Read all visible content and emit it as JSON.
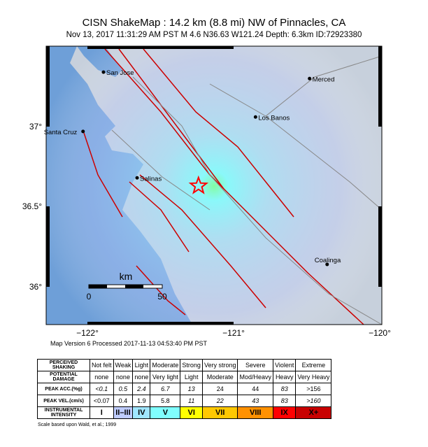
{
  "title": "CISN ShakeMap : 14.2 km (8.8 mi) NW of Pinnacles, CA",
  "subtitle": "Nov 13, 2017 11:31:29 AM PST   M 4.6   N36.63 W121.24   Depth: 6.3km   ID:72923380",
  "map": {
    "lon_labels": [
      "−122°",
      "−121°",
      "−120°"
    ],
    "lat_labels": [
      "37°",
      "36.5°",
      "36°"
    ],
    "cities": [
      {
        "name": "San Jose",
        "lon": -121.89,
        "lat": 37.34
      },
      {
        "name": "Merced",
        "lon": -120.48,
        "lat": 37.3
      },
      {
        "name": "Los Banos",
        "lon": -120.85,
        "lat": 37.06
      },
      {
        "name": "Santa Cruz",
        "lon": -122.03,
        "lat": 36.97
      },
      {
        "name": "Salinas",
        "lon": -121.66,
        "lat": 36.68
      },
      {
        "name": "Coalinga",
        "lon": -120.36,
        "lat": 36.14
      }
    ],
    "epicenter": {
      "lon": -121.24,
      "lat": 36.63
    },
    "scale": {
      "unit": "km",
      "start": "0",
      "end": "50"
    },
    "colors": {
      "ocean": "#6e9fd8",
      "land": "#c7d0dc",
      "fault": "#cc0000",
      "epicenter": "#ff0000"
    }
  },
  "version_line": "Map Version 6 Processed 2017-11-13 04:53:40 PM PST",
  "legend": {
    "rows": [
      {
        "header": "PERCEIVED SHAKING",
        "cells": [
          "Not felt",
          "Weak",
          "Light",
          "Moderate",
          "Strong",
          "Very strong",
          "Severe",
          "Violent",
          "Extreme"
        ]
      },
      {
        "header": "POTENTIAL DAMAGE",
        "cells": [
          "none",
          "none",
          "none",
          "Very light",
          "Light",
          "Moderate",
          "Mod/Heavy",
          "Heavy",
          "Very Heavy"
        ]
      },
      {
        "header": "PEAK ACC.(%g)",
        "cells": [
          "<0.1",
          "0.5",
          "2.4",
          "6.7",
          "13",
          "24",
          "44",
          "83",
          ">156"
        ]
      },
      {
        "header": "PEAK VEL.(cm/s)",
        "cells": [
          "<0.07",
          "0.4",
          "1.9",
          "5.8",
          "11",
          "22",
          "43",
          "83",
          ">160"
        ]
      },
      {
        "header": "INSTRUMENTAL INTENSITY",
        "cells": [
          "I",
          "II–III",
          "IV",
          "V",
          "VI",
          "VII",
          "VIII",
          "IX",
          "X+"
        ]
      }
    ],
    "intensity_colors": [
      "#ffffff",
      "#bfccff",
      "#a0e6ff",
      "#80ffff",
      "#ffff00",
      "#ffc800",
      "#ff9100",
      "#ff0000",
      "#c80000"
    ],
    "citation": "Scale based upon Wald, et al.; 1999"
  }
}
